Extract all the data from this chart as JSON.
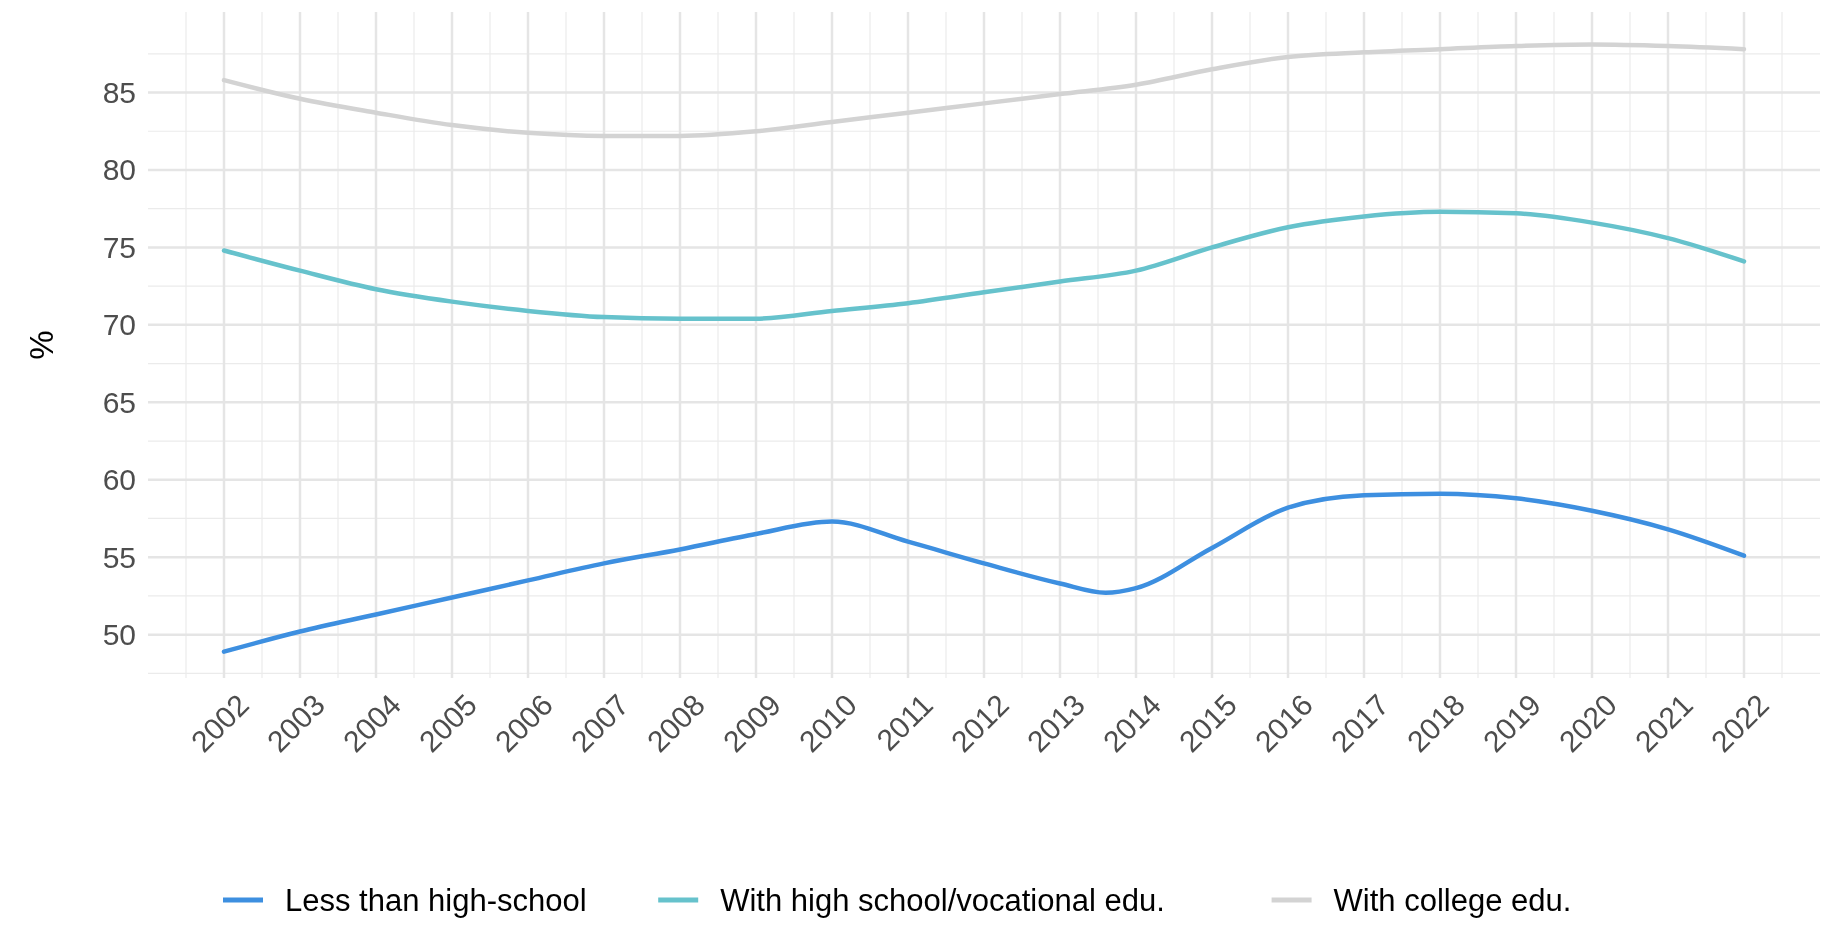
{
  "chart_data": {
    "type": "line",
    "ylabel": "%",
    "x": [
      2002,
      2003,
      2004,
      2005,
      2006,
      2007,
      2008,
      2009,
      2010,
      2011,
      2012,
      2013,
      2014,
      2015,
      2016,
      2017,
      2018,
      2019,
      2020,
      2021,
      2022
    ],
    "xlim": [
      2001,
      2023
    ],
    "xticks": [
      2002,
      2003,
      2004,
      2005,
      2006,
      2007,
      2008,
      2009,
      2010,
      2011,
      2012,
      2013,
      2014,
      2015,
      2016,
      2017,
      2018,
      2019,
      2020,
      2021,
      2022
    ],
    "ylim": [
      47.2,
      90.2
    ],
    "yticks": [
      50,
      55,
      60,
      65,
      70,
      75,
      80,
      85
    ],
    "grid": true,
    "legend": "bottom",
    "marker": "none",
    "line_style": "solid",
    "series": [
      {
        "name": "Less than high-school",
        "color": "#3d8fe0",
        "x": [
          2002,
          2003,
          2004,
          2005,
          2006,
          2007,
          2008,
          2009,
          2010,
          2011,
          2012,
          2013,
          2013.6,
          2014,
          2015,
          2016,
          2017,
          2018,
          2019,
          2020,
          2021,
          2022
        ],
        "values": [
          48.9,
          50.2,
          51.3,
          52.4,
          53.5,
          54.6,
          55.5,
          56.5,
          57.3,
          56.0,
          54.6,
          53.3,
          52.7,
          53.0,
          55.6,
          58.2,
          59.0,
          59.1,
          58.8,
          58.0,
          56.8,
          55.1
        ]
      },
      {
        "name": "With high school/vocational edu.",
        "color": "#66c2cc",
        "values": [
          74.8,
          73.5,
          72.3,
          71.5,
          70.9,
          70.5,
          70.4,
          70.4,
          70.9,
          71.4,
          72.1,
          72.8,
          73.5,
          75.0,
          76.3,
          77.0,
          77.3,
          77.2,
          76.6,
          75.6,
          74.1
        ]
      },
      {
        "name": "With college edu.",
        "color": "#d3d3d3",
        "values": [
          85.8,
          84.6,
          83.7,
          82.9,
          82.4,
          82.2,
          82.2,
          82.5,
          83.1,
          83.7,
          84.3,
          84.9,
          85.5,
          86.5,
          87.3,
          87.6,
          87.8,
          88.0,
          88.1,
          88.0,
          87.8
        ]
      }
    ]
  }
}
